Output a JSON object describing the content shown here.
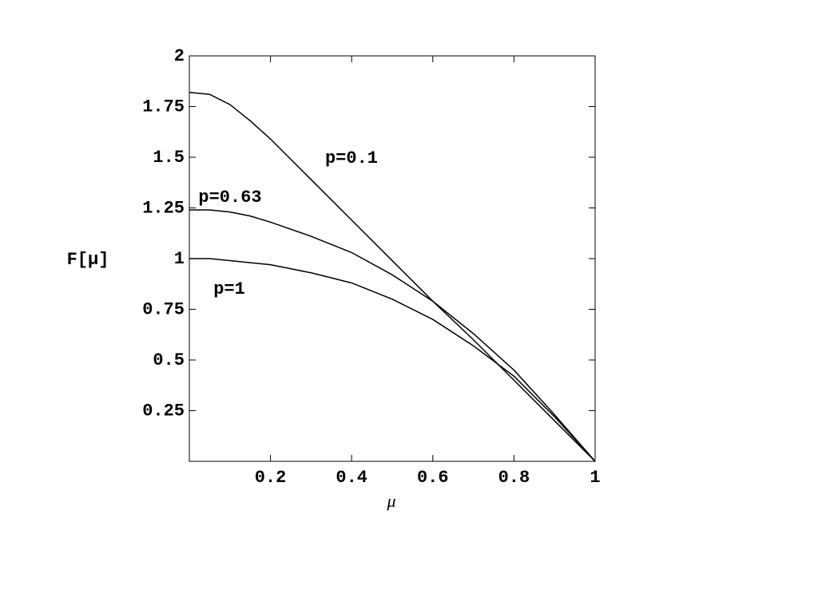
{
  "chart_data": {
    "type": "line",
    "x_label": "μ",
    "y_label": "F[μ]",
    "x": [
      0,
      0.05,
      0.1,
      0.15,
      0.2,
      0.3,
      0.4,
      0.5,
      0.6,
      0.7,
      0.8,
      0.9,
      1
    ],
    "series": [
      {
        "name": "p=0.1",
        "color": "#000000",
        "values": [
          1.82,
          1.81,
          1.76,
          1.68,
          1.59,
          1.39,
          1.19,
          0.99,
          0.79,
          0.6,
          0.4,
          0.2,
          0
        ]
      },
      {
        "name": "p=0.63",
        "color": "#000000",
        "values": [
          1.24,
          1.24,
          1.23,
          1.21,
          1.18,
          1.11,
          1.03,
          0.92,
          0.79,
          0.63,
          0.45,
          0.23,
          0
        ]
      },
      {
        "name": "p=1",
        "color": "#000000",
        "values": [
          1,
          1,
          0.99,
          0.98,
          0.97,
          0.93,
          0.88,
          0.8,
          0.7,
          0.57,
          0.42,
          0.22,
          0
        ]
      }
    ],
    "xlim": [
      0,
      1
    ],
    "ylim": [
      0,
      2
    ],
    "xticks": [
      0.2,
      0.4,
      0.6,
      0.8,
      1
    ],
    "yticks": [
      0.25,
      0.5,
      0.75,
      1,
      1.25,
      1.5,
      1.75,
      2
    ],
    "grid": false
  }
}
